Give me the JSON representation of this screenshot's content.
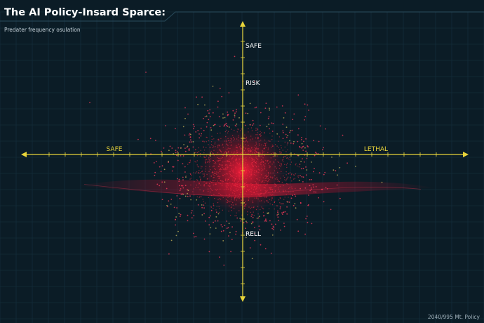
{
  "header": {
    "title": "The AI Policy-Insard Sparce:",
    "subtitle": "Predater frequency osulation"
  },
  "footer": {
    "note": "2040/995 Mt. Policy"
  },
  "colors": {
    "background": "#0b1c26",
    "grid": "#163341",
    "axis": "#e8d43a",
    "point": "#ff2b45",
    "frame": "#2a4c5c"
  },
  "chart_data": {
    "type": "scatter",
    "title": "The AI Policy-Insard Sparce:",
    "subtitle": "Predater frequency osulation",
    "x_axis": {
      "left_label": "SAFE",
      "right_label": "LETHAL",
      "range": [
        -1,
        1
      ]
    },
    "y_axis": {
      "labels": [
        "SAFE",
        "RISK",
        "RELL"
      ],
      "range": [
        -1,
        1
      ]
    },
    "grid": true,
    "cluster": {
      "center": [
        0,
        0
      ],
      "spread": 0.17,
      "points": 1600
    },
    "band": {
      "shape": "horizontal ribbon",
      "y": -0.05
    }
  }
}
